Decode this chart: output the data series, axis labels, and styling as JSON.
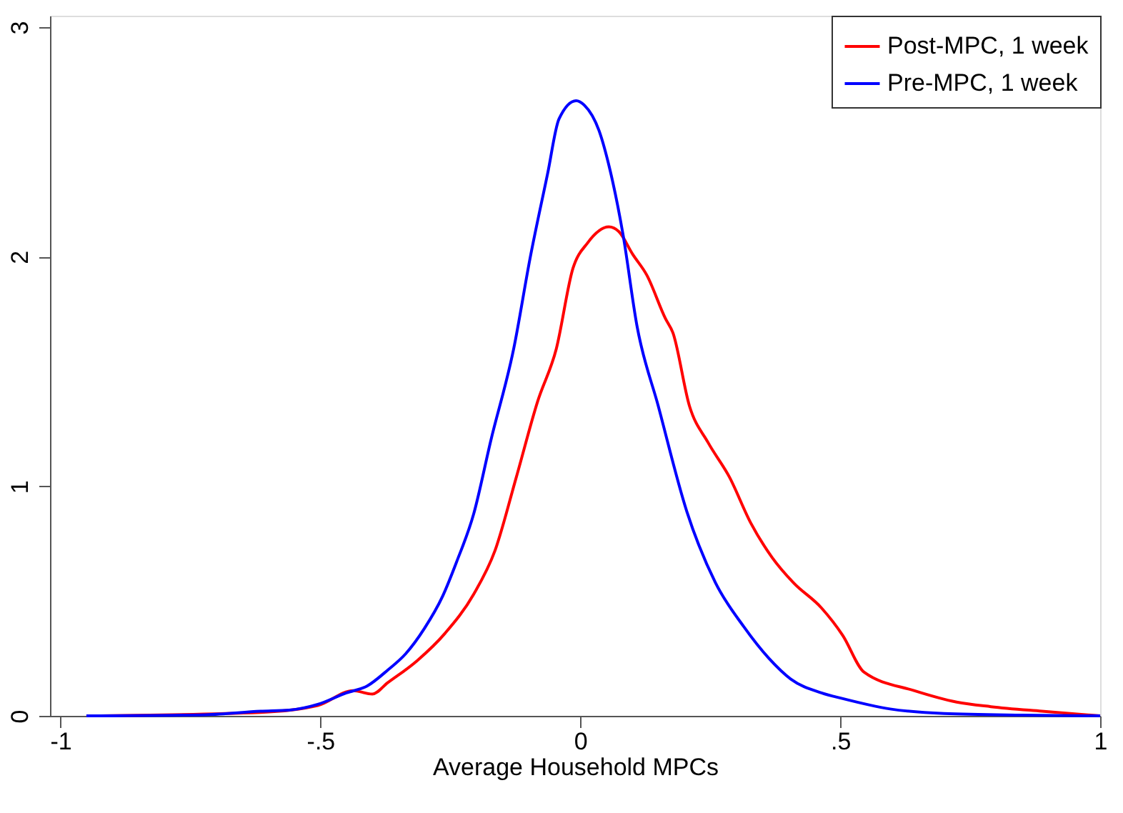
{
  "chart_data": {
    "type": "line",
    "xlabel": "Average Household MPCs",
    "xlim": [
      -1.02,
      1.0
    ],
    "ylim": [
      0,
      3.05
    ],
    "xticks": [
      {
        "value": -1,
        "label": "-1"
      },
      {
        "value": -0.5,
        "label": "-.5"
      },
      0,
      {
        "value": 0.5,
        "label": ".5"
      },
      1
    ],
    "yticks": [
      0,
      1,
      2,
      3
    ],
    "grid": false,
    "legend": "top right",
    "line_style": "solid",
    "series": [
      {
        "name": "Post-MPC, 1 week",
        "color": "#ff0000",
        "x": [
          -0.95,
          -0.615,
          -0.505,
          -0.437,
          -0.4,
          -0.37,
          -0.314,
          -0.26,
          -0.205,
          -0.164,
          -0.123,
          -0.082,
          -0.046,
          -0.014,
          0.014,
          0.055,
          0.074,
          0.101,
          0.128,
          0.164,
          0.178,
          0.21,
          0.246,
          0.287,
          0.328,
          0.369,
          0.41,
          0.464,
          0.505,
          0.546,
          0.642,
          0.724,
          0.79,
          0.888,
          1.0
        ],
        "values": [
          0,
          0.015,
          0.045,
          0.11,
          0.095,
          0.145,
          0.24,
          0.36,
          0.53,
          0.72,
          1.04,
          1.37,
          1.6,
          1.95,
          2.06,
          2.13,
          2.11,
          2.01,
          1.92,
          1.73,
          1.67,
          1.35,
          1.19,
          1.04,
          0.84,
          0.69,
          0.58,
          0.47,
          0.35,
          0.19,
          0.11,
          0.06,
          0.04,
          0.02,
          0
        ]
      },
      {
        "name": "Pre-MPC, 1 week",
        "color": "#0000ff",
        "x": [
          -0.95,
          -0.72,
          -0.615,
          -0.56,
          -0.505,
          -0.45,
          -0.41,
          -0.37,
          -0.336,
          -0.3,
          -0.265,
          -0.238,
          -0.205,
          -0.172,
          -0.128,
          -0.096,
          -0.063,
          -0.041,
          -0.008,
          0.008,
          0.036,
          0.057,
          0.082,
          0.109,
          0.15,
          0.205,
          0.26,
          0.314,
          0.363,
          0.405,
          0.464,
          0.505,
          0.596,
          0.7,
          0.85,
          1.0
        ],
        "values": [
          0,
          0.005,
          0.02,
          0.025,
          0.05,
          0.1,
          0.13,
          0.2,
          0.27,
          0.38,
          0.52,
          0.67,
          0.88,
          1.2,
          1.6,
          2.0,
          2.36,
          2.6,
          2.68,
          2.66,
          2.55,
          2.38,
          2.1,
          1.7,
          1.35,
          0.89,
          0.58,
          0.39,
          0.25,
          0.16,
          0.1,
          0.075,
          0.03,
          0.01,
          0.003,
          0
        ]
      }
    ]
  }
}
